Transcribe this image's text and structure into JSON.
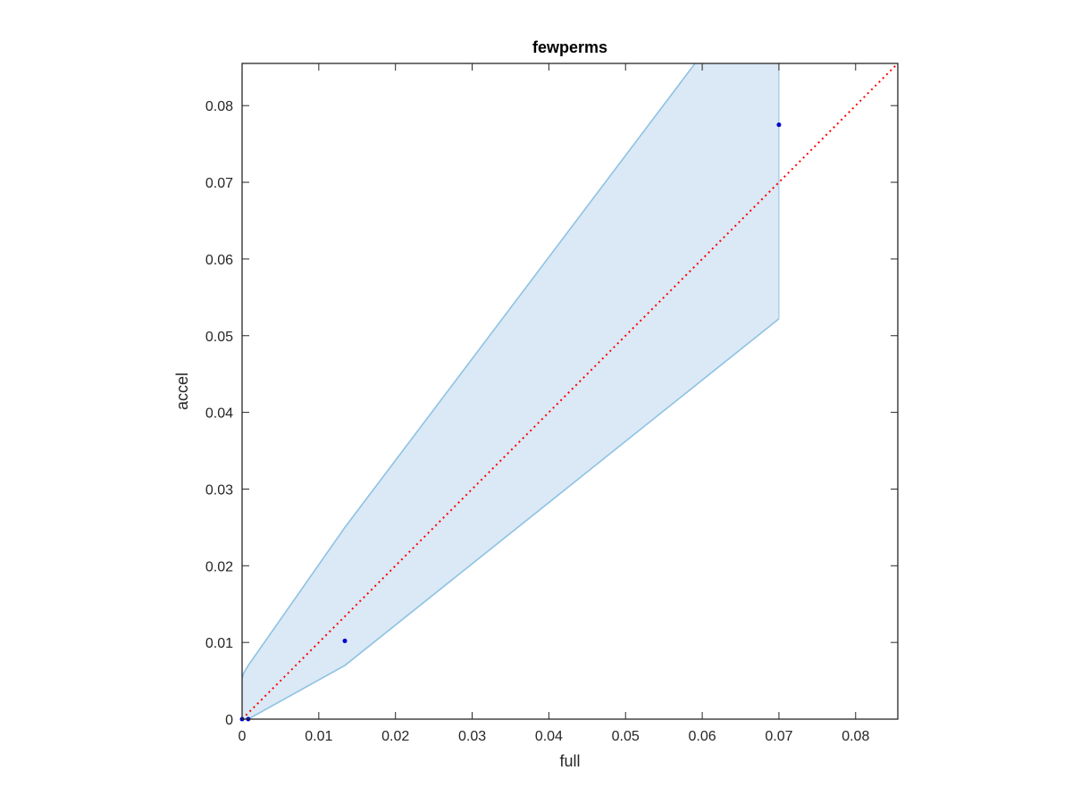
{
  "chart_data": {
    "type": "scatter",
    "title": "fewperms",
    "xlabel": "full",
    "ylabel": "accel",
    "xlim": [
      0,
      0.0855
    ],
    "ylim": [
      0,
      0.0855
    ],
    "xticks": [
      0,
      0.01,
      0.02,
      0.03,
      0.04,
      0.05,
      0.06,
      0.07,
      0.08
    ],
    "yticks": [
      0,
      0.01,
      0.02,
      0.03,
      0.04,
      0.05,
      0.06,
      0.07,
      0.08
    ],
    "xtick_labels": [
      "0",
      "0.01",
      "0.02",
      "0.03",
      "0.04",
      "0.05",
      "0.06",
      "0.07",
      "0.08"
    ],
    "ytick_labels": [
      "0",
      "0.01",
      "0.02",
      "0.03",
      "0.04",
      "0.05",
      "0.06",
      "0.07",
      "0.08"
    ],
    "grid": false,
    "points": {
      "x": [
        0,
        0.0008,
        0.0134,
        0.07
      ],
      "y": [
        0,
        0,
        0.0102,
        0.0775
      ],
      "color": "#0000cc"
    },
    "band": {
      "x": [
        0,
        0.0002,
        0.0008,
        0.0134,
        0.07
      ],
      "upper": [
        0.0053,
        0.006,
        0.007,
        0.025,
        0.1
      ],
      "lower": [
        0,
        0,
        0,
        0.007,
        0.0522
      ],
      "fill_color": "#dae9f5",
      "line_color": "#8fc2e3"
    },
    "reference_line": {
      "x": [
        0,
        0.0855
      ],
      "y": [
        0,
        0.0855
      ],
      "color": "#ff0000",
      "style": "dotted"
    }
  }
}
